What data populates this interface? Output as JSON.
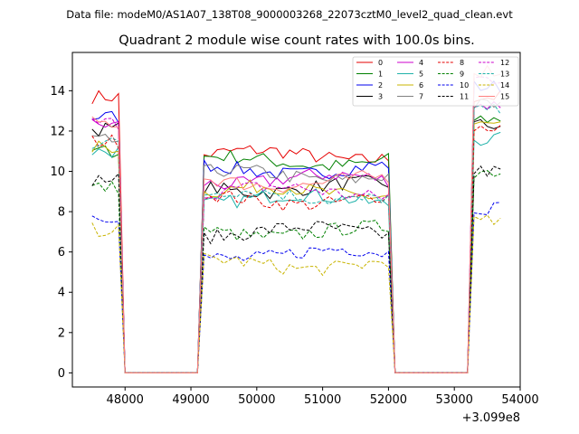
{
  "figure": {
    "suptitle": "Data file: modeM0/AS1A07_138T08_9000003268_22073cztM0_level2_quad_clean.evt"
  },
  "chart_data": {
    "type": "line",
    "title": "Quadrant 2 module wise count rates with 100.0s bins.",
    "xlabel": "",
    "ylabel": "",
    "x_offset_label": "+3.099e8",
    "xlim": [
      47200,
      54000
    ],
    "ylim": [
      -0.7,
      15.9
    ],
    "xticks": [
      48000,
      49000,
      50000,
      51000,
      52000,
      53000,
      54000
    ],
    "xtick_labels": [
      "48000",
      "49000",
      "50000",
      "51000",
      "52000",
      "53000",
      "54000"
    ],
    "yticks": [
      0,
      2,
      4,
      6,
      8,
      10,
      12,
      14
    ],
    "ytick_labels": [
      "0",
      "2",
      "4",
      "6",
      "8",
      "10",
      "12",
      "14"
    ],
    "grid": false,
    "legend": "top-right",
    "segments": [
      {
        "x_start": 47500,
        "x_end": 47900
      },
      {
        "x_start": 49200,
        "x_end": 52000
      },
      {
        "x_start": 53300,
        "x_end": 53700
      }
    ],
    "gap_value": 0,
    "series": [
      {
        "name": "0",
        "color": "#e60000",
        "dash": "solid",
        "levels": [
          13.7,
          10.8,
          13.7
        ]
      },
      {
        "name": "1",
        "color": "#008000",
        "dash": "solid",
        "levels": [
          11.0,
          10.5,
          12.6
        ]
      },
      {
        "name": "2",
        "color": "#0000ee",
        "dash": "solid",
        "levels": [
          12.7,
          10.1,
          14.2
        ]
      },
      {
        "name": "3",
        "color": "#000000",
        "dash": "solid",
        "levels": [
          12.1,
          9.2,
          12.3
        ]
      },
      {
        "name": "4",
        "color": "#cc00cc",
        "dash": "solid",
        "levels": [
          12.3,
          9.6,
          13.3
        ]
      },
      {
        "name": "5",
        "color": "#20b2aa",
        "dash": "solid",
        "levels": [
          11.0,
          8.6,
          11.6
        ]
      },
      {
        "name": "6",
        "color": "#c8b400",
        "dash": "solid",
        "levels": [
          11.2,
          9.0,
          12.3
        ]
      },
      {
        "name": "7",
        "color": "#808080",
        "dash": "solid",
        "levels": [
          11.5,
          9.8,
          13.3
        ]
      },
      {
        "name": "8",
        "color": "#e60000",
        "dash": "dashed",
        "levels": [
          11.5,
          8.6,
          12.2
        ]
      },
      {
        "name": "9",
        "color": "#008000",
        "dash": "dashed",
        "levels": [
          9.2,
          7.0,
          10.0
        ]
      },
      {
        "name": "10",
        "color": "#0000ee",
        "dash": "dashed",
        "levels": [
          7.8,
          5.9,
          8.2
        ]
      },
      {
        "name": "11",
        "color": "#000000",
        "dash": "dashed",
        "levels": [
          9.6,
          7.0,
          10.0
        ]
      },
      {
        "name": "12",
        "color": "#cc00cc",
        "dash": "dashed",
        "levels": [
          12.4,
          9.0,
          14.6
        ]
      },
      {
        "name": "13",
        "color": "#20b2aa",
        "dash": "dashed",
        "levels": [
          11.4,
          8.8,
          13.0
        ]
      },
      {
        "name": "14",
        "color": "#c8b400",
        "dash": "dashed",
        "levels": [
          7.1,
          5.4,
          7.5
        ]
      },
      {
        "name": "15",
        "color": "#ff7f7f",
        "dash": "solid",
        "levels": [
          12.4,
          9.5,
          15.0
        ]
      }
    ]
  }
}
